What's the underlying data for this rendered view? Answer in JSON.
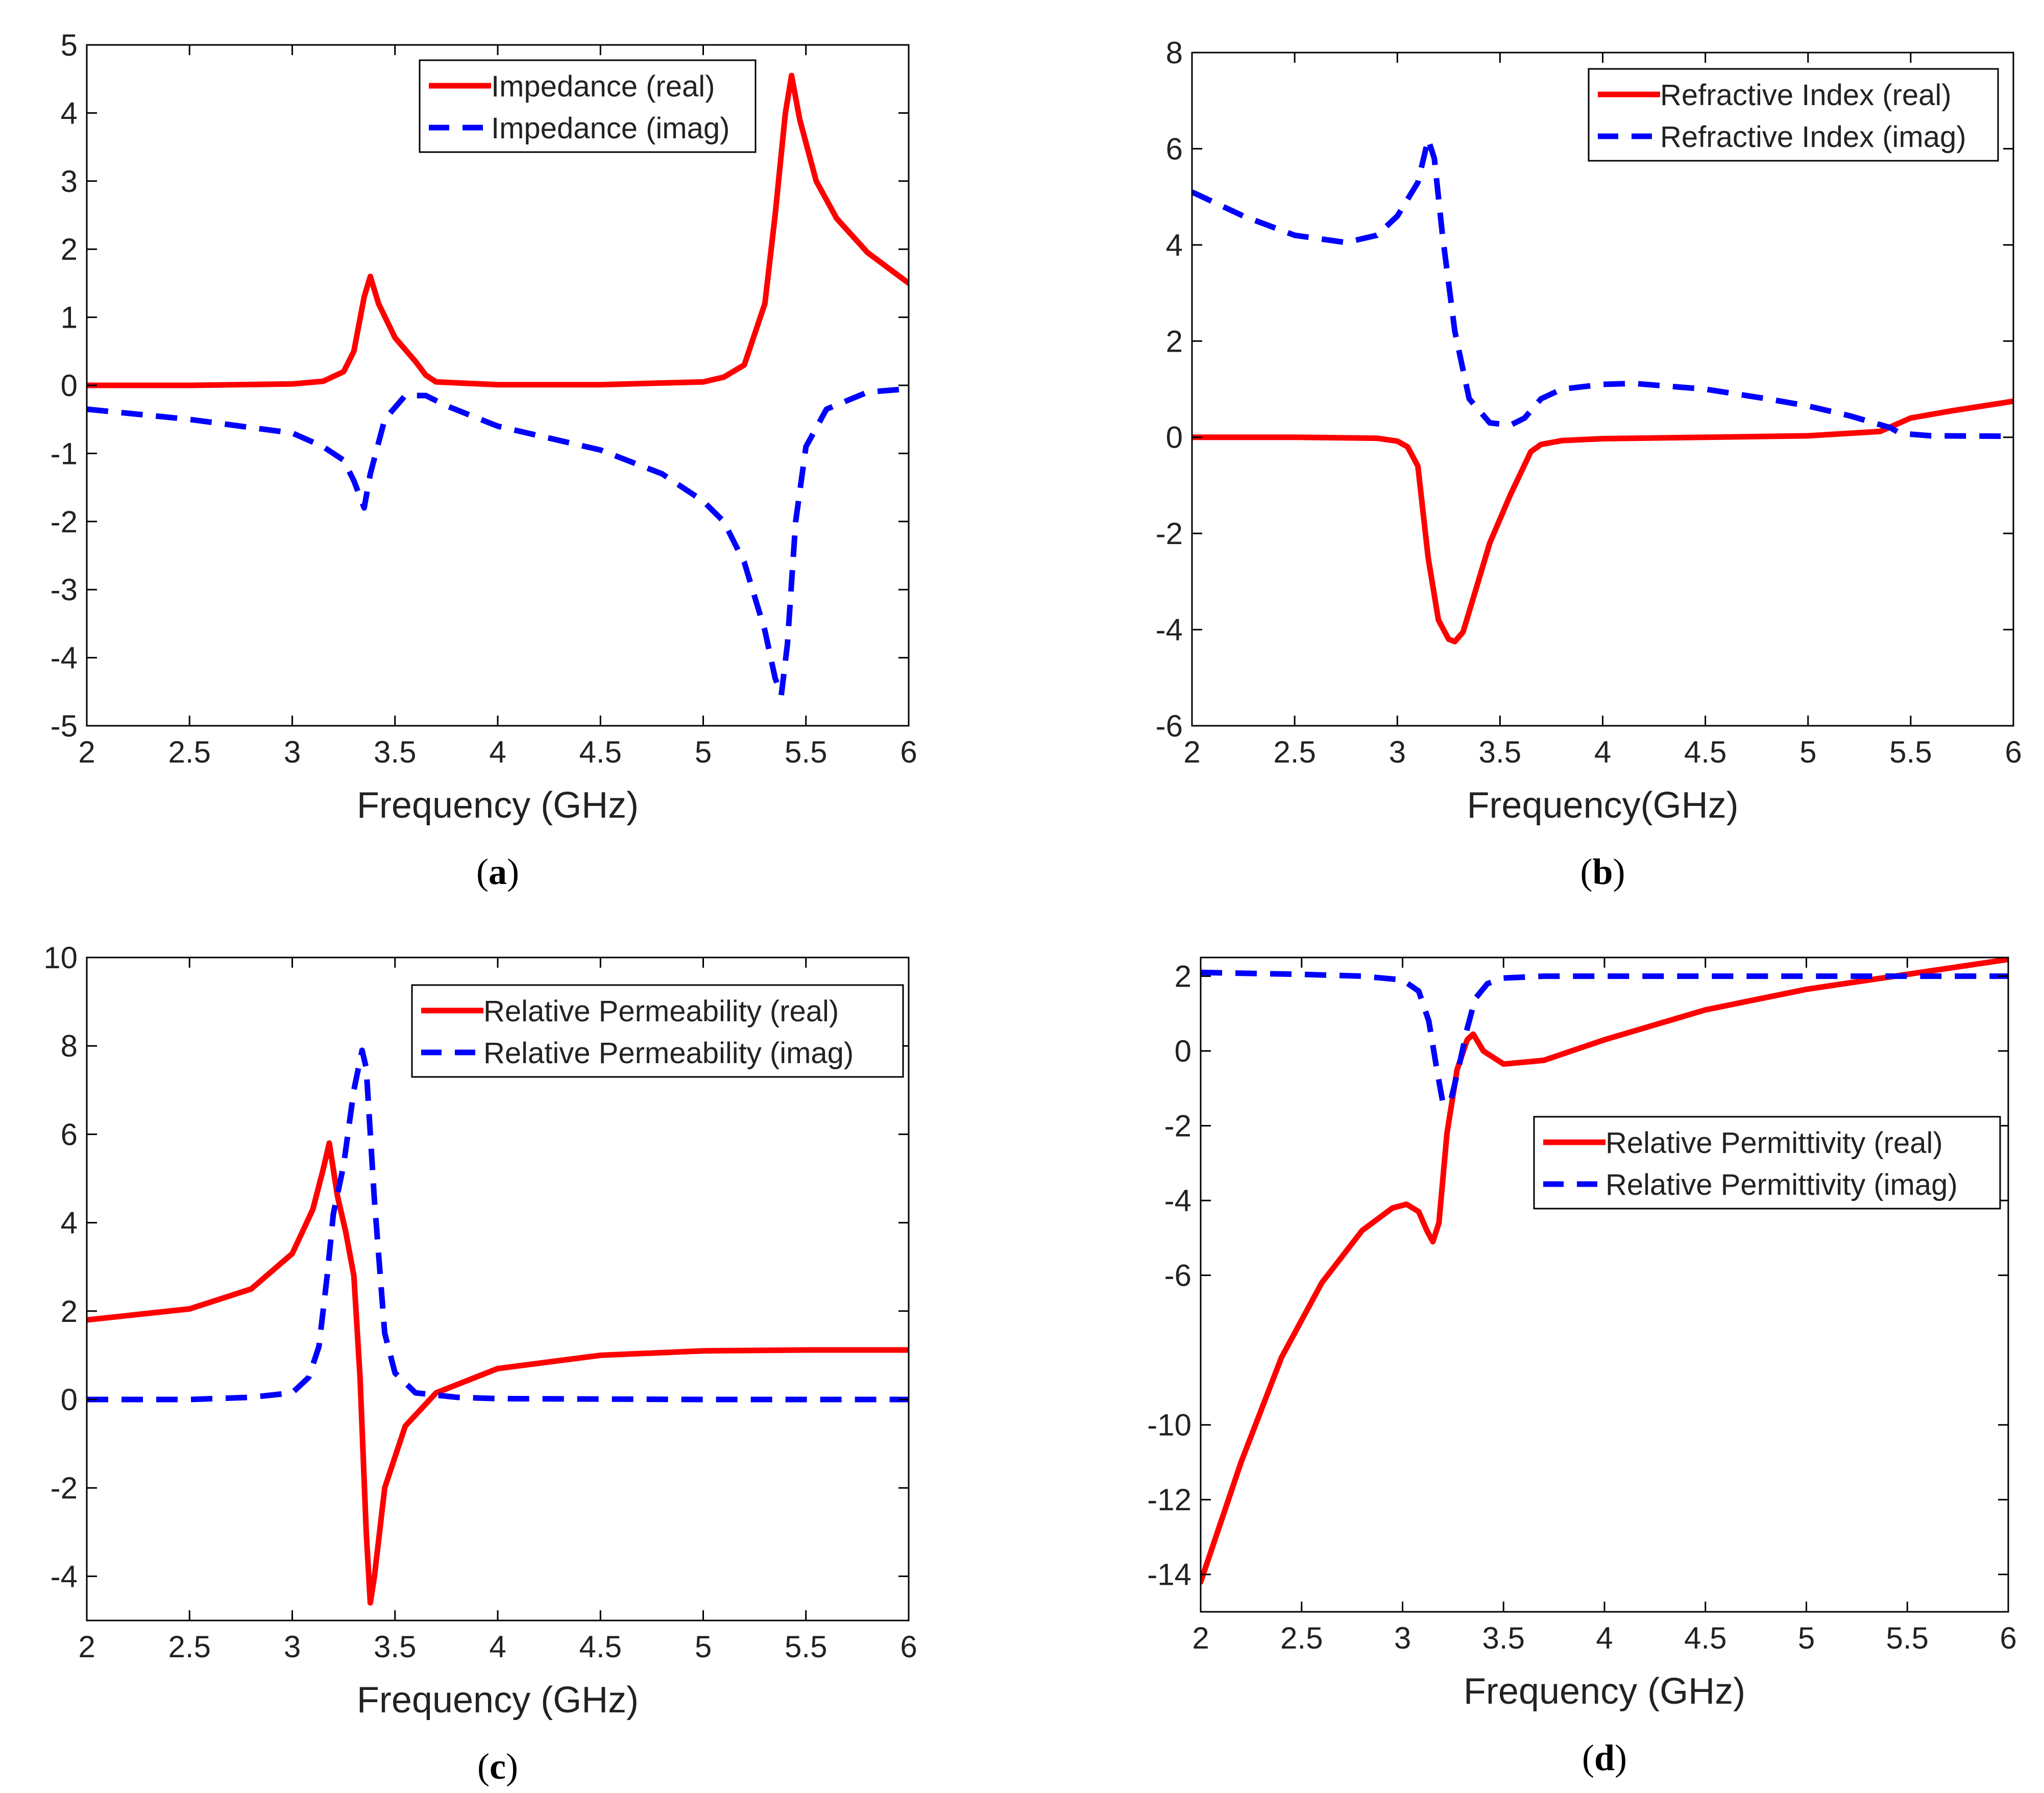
{
  "figure": {
    "colors": {
      "real": "#ff0000",
      "imag": "#0000ff",
      "axis": "#000000"
    }
  },
  "chart_data": [
    {
      "id": "a",
      "caption": "a",
      "type": "line",
      "xlabel": "Frequency (GHz)",
      "ylabel": "",
      "xlim": [
        2,
        6
      ],
      "ylim": [
        -5,
        5
      ],
      "xticks": [
        2,
        2.5,
        3,
        3.5,
        4,
        4.5,
        5,
        5.5,
        6
      ],
      "xtick_labels": [
        "2",
        "2.5",
        "3",
        "3.5",
        "4",
        "4.5",
        "5",
        "5.5",
        "6"
      ],
      "yticks": [
        -5,
        -4,
        -3,
        -2,
        -1,
        0,
        1,
        2,
        3,
        4,
        5
      ],
      "ytick_labels": [
        "-5",
        "-4",
        "-3",
        "-2",
        "-1",
        "0",
        "1",
        "2",
        "3",
        "4",
        "5"
      ],
      "legend_position": "top-right",
      "series": [
        {
          "name": "Impedance (real)",
          "style": "solid",
          "color": "#ff0000",
          "x": [
            2,
            2.5,
            3,
            3.15,
            3.25,
            3.3,
            3.35,
            3.38,
            3.42,
            3.5,
            3.6,
            3.65,
            3.7,
            4,
            4.5,
            5,
            5.1,
            5.2,
            5.3,
            5.35,
            5.4,
            5.43,
            5.47,
            5.55,
            5.65,
            5.8,
            6
          ],
          "y": [
            0,
            0,
            0.02,
            0.06,
            0.2,
            0.5,
            1.3,
            1.6,
            1.2,
            0.7,
            0.35,
            0.15,
            0.05,
            0.01,
            0.01,
            0.05,
            0.12,
            0.3,
            1.2,
            2.5,
            4.0,
            4.55,
            3.9,
            3.0,
            2.45,
            1.95,
            1.5
          ]
        },
        {
          "name": "Impedance (imag)",
          "style": "dashed",
          "color": "#0000ff",
          "x": [
            2,
            2.5,
            3,
            3.15,
            3.25,
            3.3,
            3.35,
            3.38,
            3.45,
            3.55,
            3.65,
            3.75,
            4,
            4.5,
            4.8,
            5,
            5.1,
            5.2,
            5.3,
            5.35,
            5.38,
            5.41,
            5.45,
            5.5,
            5.6,
            5.8,
            6
          ],
          "y": [
            -0.35,
            -0.5,
            -0.7,
            -0.9,
            -1.1,
            -1.4,
            -1.8,
            -1.3,
            -0.5,
            -0.15,
            -0.15,
            -0.3,
            -0.6,
            -0.95,
            -1.3,
            -1.7,
            -2.0,
            -2.6,
            -3.6,
            -4.3,
            -4.55,
            -3.8,
            -2.0,
            -0.9,
            -0.35,
            -0.1,
            -0.05
          ]
        }
      ]
    },
    {
      "id": "b",
      "caption": "b",
      "type": "line",
      "xlabel": "Frequency(GHz)",
      "ylabel": "",
      "xlim": [
        2,
        6
      ],
      "ylim": [
        -6,
        8
      ],
      "xticks": [
        2,
        2.5,
        3,
        3.5,
        4,
        4.5,
        5,
        5.5,
        6
      ],
      "xtick_labels": [
        "2",
        "2.5",
        "3",
        "3.5",
        "4",
        "4.5",
        "5",
        "5.5",
        "6"
      ],
      "yticks": [
        -6,
        -4,
        -2,
        0,
        2,
        4,
        6,
        8
      ],
      "ytick_labels": [
        "-6",
        "-4",
        "-2",
        "0",
        "2",
        "4",
        "6",
        "8"
      ],
      "legend_position": "top-right",
      "series": [
        {
          "name": "Refractive Index (real)",
          "style": "solid",
          "color": "#ff0000",
          "x": [
            2,
            2.5,
            2.9,
            3.0,
            3.05,
            3.1,
            3.15,
            3.2,
            3.25,
            3.28,
            3.32,
            3.38,
            3.45,
            3.55,
            3.65,
            3.7,
            3.8,
            4,
            4.5,
            5,
            5.35,
            5.42,
            5.5,
            5.7,
            6
          ],
          "y": [
            0,
            0,
            -0.02,
            -0.08,
            -0.2,
            -0.6,
            -2.5,
            -3.8,
            -4.2,
            -4.25,
            -4.05,
            -3.2,
            -2.2,
            -1.2,
            -0.3,
            -0.15,
            -0.07,
            -0.03,
            0,
            0.03,
            0.12,
            0.25,
            0.4,
            0.55,
            0.75
          ]
        },
        {
          "name": "Refractive Index (imag)",
          "style": "dashed",
          "color": "#0000ff",
          "x": [
            2,
            2.25,
            2.5,
            2.75,
            2.9,
            3.0,
            3.1,
            3.15,
            3.18,
            3.22,
            3.28,
            3.35,
            3.45,
            3.55,
            3.62,
            3.7,
            3.8,
            4,
            4.15,
            4.5,
            4.8,
            5,
            5.2,
            5.4,
            5.45,
            5.6,
            6
          ],
          "y": [
            5.1,
            4.6,
            4.2,
            4.05,
            4.2,
            4.6,
            5.3,
            6.2,
            5.8,
            4.2,
            2.2,
            0.8,
            0.3,
            0.25,
            0.4,
            0.8,
            1.0,
            1.1,
            1.12,
            1.0,
            0.8,
            0.65,
            0.45,
            0.2,
            0.08,
            0.03,
            0.02
          ]
        }
      ]
    },
    {
      "id": "c",
      "caption": "c",
      "type": "line",
      "xlabel": "Frequency (GHz)",
      "ylabel": "",
      "xlim": [
        2,
        6
      ],
      "ylim": [
        -5,
        10
      ],
      "xticks": [
        2,
        2.5,
        3,
        3.5,
        4,
        4.5,
        5,
        5.5,
        6
      ],
      "xtick_labels": [
        "2",
        "2.5",
        "3",
        "3.5",
        "4",
        "4.5",
        "5",
        "5.5",
        "6"
      ],
      "yticks": [
        -4,
        -2,
        0,
        2,
        4,
        6,
        8,
        10
      ],
      "ytick_labels": [
        "-4",
        "-2",
        "0",
        "2",
        "4",
        "6",
        "8",
        "10"
      ],
      "legend_position": "top-right",
      "series": [
        {
          "name": "Relative Permeability (real)",
          "style": "solid",
          "color": "#ff0000",
          "x": [
            2,
            2.5,
            2.8,
            3.0,
            3.1,
            3.15,
            3.18,
            3.22,
            3.26,
            3.3,
            3.33,
            3.36,
            3.38,
            3.4,
            3.45,
            3.55,
            3.7,
            4,
            4.5,
            5,
            5.5,
            6
          ],
          "y": [
            1.8,
            2.05,
            2.5,
            3.3,
            4.3,
            5.2,
            5.8,
            4.6,
            3.8,
            2.8,
            0.5,
            -3.0,
            -4.6,
            -4.0,
            -2.0,
            -0.6,
            0.15,
            0.7,
            1.0,
            1.1,
            1.12,
            1.12
          ]
        },
        {
          "name": "Relative Permeability (imag)",
          "style": "dashed",
          "color": "#0000ff",
          "x": [
            2,
            2.5,
            2.8,
            3.0,
            3.08,
            3.13,
            3.17,
            3.2,
            3.25,
            3.3,
            3.34,
            3.36,
            3.4,
            3.45,
            3.5,
            3.6,
            3.8,
            4,
            5,
            6
          ],
          "y": [
            0,
            0,
            0.05,
            0.15,
            0.5,
            1.2,
            2.8,
            4.2,
            5.3,
            7.0,
            7.9,
            7.5,
            4.5,
            1.5,
            0.6,
            0.15,
            0.05,
            0.02,
            0,
            0
          ]
        }
      ]
    },
    {
      "id": "d",
      "caption": "d",
      "type": "line",
      "xlabel": "Frequency (GHz)",
      "ylabel": "",
      "xlim": [
        2,
        6
      ],
      "ylim": [
        -15,
        2.5
      ],
      "xticks": [
        2,
        2.5,
        3,
        3.5,
        4,
        4.5,
        5,
        5.5,
        6
      ],
      "xtick_labels": [
        "2",
        "2.5",
        "3",
        "3.5",
        "4",
        "4.5",
        "5",
        "5.5",
        "6"
      ],
      "yticks": [
        -14,
        -12,
        -10,
        -6,
        -4,
        -2,
        0,
        2
      ],
      "ytick_labels": [
        "-14",
        "-12",
        "-10",
        "-6",
        "-4",
        "-2",
        "0",
        "2"
      ],
      "legend_position": "center-right",
      "series": [
        {
          "name": "Relative Permittivity (real)",
          "style": "solid",
          "color": "#ff0000",
          "x": [
            2,
            2.2,
            2.4,
            2.6,
            2.8,
            2.95,
            3.02,
            3.08,
            3.12,
            3.15,
            3.18,
            3.22,
            3.27,
            3.32,
            3.35,
            3.4,
            3.5,
            3.7,
            4,
            4.5,
            5,
            5.5,
            6
          ],
          "y": [
            -14.2,
            -11.0,
            -8.2,
            -6.2,
            -4.8,
            -4.2,
            -4.1,
            -4.3,
            -4.8,
            -5.1,
            -4.6,
            -2.2,
            -0.5,
            0.3,
            0.45,
            0.0,
            -0.35,
            -0.25,
            0.3,
            1.1,
            1.65,
            2.05,
            2.45
          ]
        },
        {
          "name": "Relative Permittivity (imag)",
          "style": "dashed",
          "color": "#0000ff",
          "x": [
            2,
            2.5,
            2.8,
            3.0,
            3.08,
            3.13,
            3.17,
            3.2,
            3.24,
            3.28,
            3.32,
            3.36,
            3.42,
            3.5,
            3.7,
            4,
            5,
            6
          ],
          "y": [
            2.1,
            2.05,
            2.0,
            1.9,
            1.6,
            0.8,
            -0.5,
            -1.4,
            -1.3,
            -0.4,
            0.6,
            1.4,
            1.8,
            1.95,
            2.0,
            2.0,
            2.0,
            2.0
          ]
        }
      ]
    }
  ]
}
